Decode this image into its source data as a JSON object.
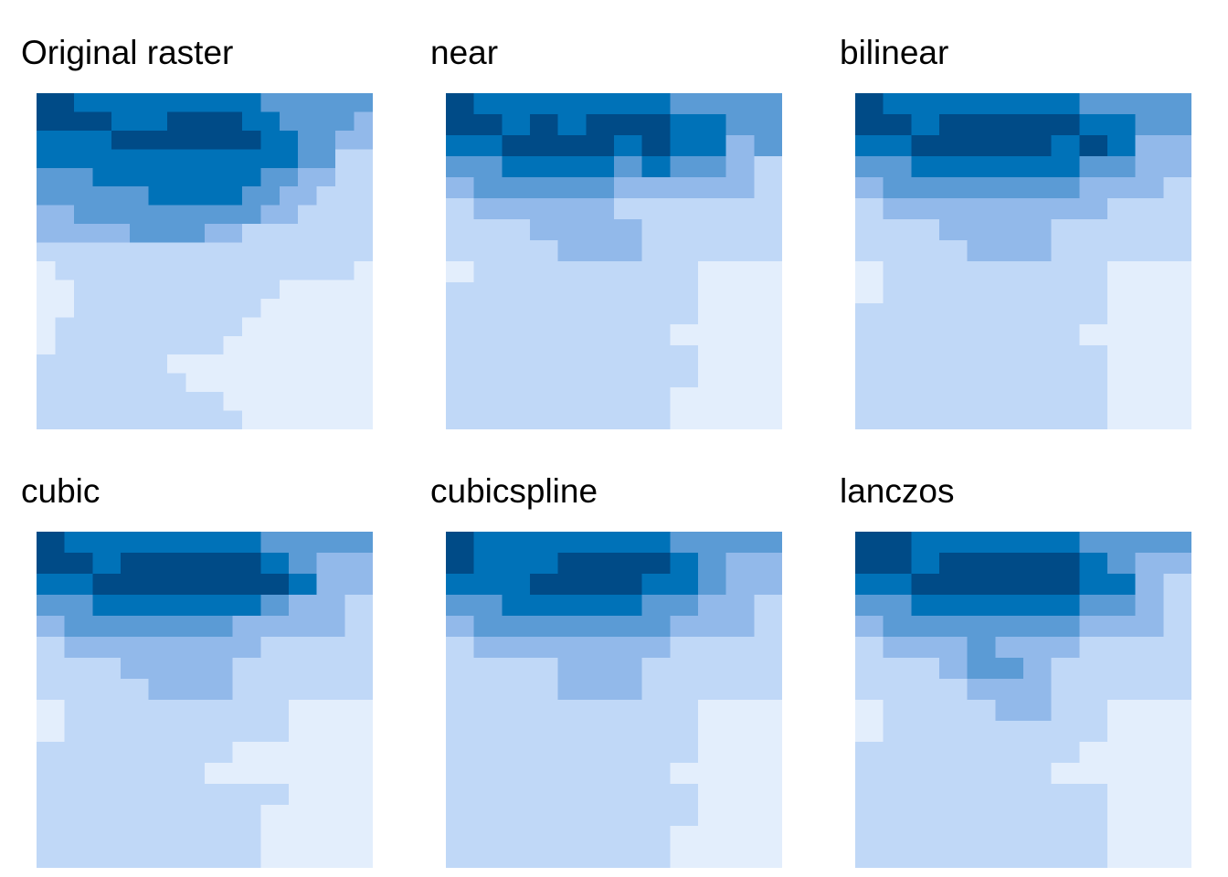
{
  "chart_data": {
    "type": "heatmap",
    "palette": [
      "#e3eefc",
      "#c0d8f7",
      "#92b9ea",
      "#5b9bd5",
      "#0072b8",
      "#004b87"
    ],
    "panels": [
      {
        "title": "Original raster",
        "grid": [
          "554444444444333333",
          "555544455554433332",
          "444455555555443322",
          "444444444444443311",
          "333444444444332211",
          "333333444443322111",
          "223333333333221111",
          "222223333221111111",
          "111111111111111111",
          "011111111111111110",
          "001111111111100000",
          "001111111111000000",
          "011111111110000000",
          "011111111100000000",
          "111111100000000000",
          "111111110000000000",
          "111111111100000000",
          "111111111110000000"
        ]
      },
      {
        "title": "near",
        "grid": [
          "544444443333",
          "554545554433",
          "445555454423",
          "334444343321",
          "233333222221",
          "122222111111",
          "111222211111",
          "111122211111",
          "011111111000",
          "111111111000",
          "111111111000",
          "111111110000",
          "111111111000",
          "111111111000",
          "111111110000",
          "111111110000"
        ]
      },
      {
        "title": "bilinear",
        "grid": [
          "544444443333",
          "554555554433",
          "445555545422",
          "334444443322",
          "233333332221",
          "122222222111",
          "111222211111",
          "111122211111",
          "011111111000",
          "011111111000",
          "111111111000",
          "111111110000",
          "111111111000",
          "111111111000",
          "111111111000",
          "111111111000"
        ]
      },
      {
        "title": "cubic",
        "grid": [
          "544444443333",
          "554555554322",
          "445555555422",
          "334444443221",
          "233333322221",
          "122222221111",
          "111222211111",
          "111122211111",
          "011111111000",
          "011111111000",
          "111111100000",
          "111111000000",
          "111111111000",
          "111111110000",
          "111111110000",
          "111111110000"
        ]
      },
      {
        "title": "cubicspline",
        "grid": [
          "544444443333",
          "544455554322",
          "444555544322",
          "334444433221",
          "233333332221",
          "122222221111",
          "111122211111",
          "111122211111",
          "111111111000",
          "111111111000",
          "111111111000",
          "111111110000",
          "111111111000",
          "111111111000",
          "111111110000",
          "111111110000"
        ]
      },
      {
        "title": "lanczos",
        "grid": [
          "554444443333",
          "554555554322",
          "445555554421",
          "334444443321",
          "233333332221",
          "122232221111",
          "111233211111",
          "111122211111",
          "011112211000",
          "011111111000",
          "111111110000",
          "111111100000",
          "111111111000",
          "111111111000",
          "111111111000",
          "111111111000"
        ]
      }
    ]
  }
}
